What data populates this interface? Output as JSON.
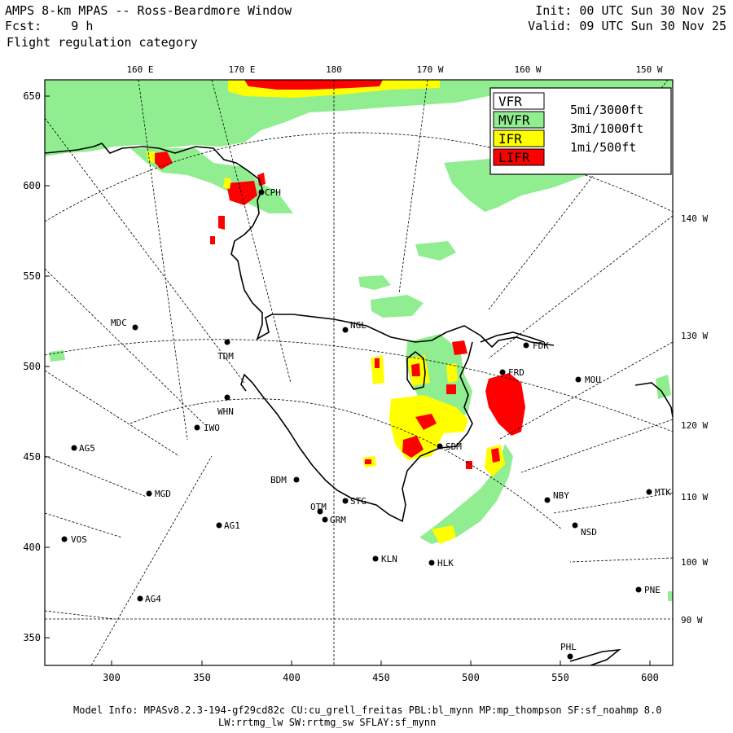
{
  "header": {
    "title": "AMPS 8-km MPAS -- Ross-Beardmore Window",
    "fcst": "Fcst:    9 h",
    "subtitle": "Flight regulation category",
    "init": "Init: 00 UTC Sun 30 Nov 25",
    "valid": "Valid: 09 UTC Sun 30 Nov 25"
  },
  "footer": {
    "line1": "Model Info: MPASv8.2.3-194-gf29cd82c CU:cu_grell_freitas PBL:bl_mynn MP:mp_thompson SF:sf_noahmp 8.0",
    "line2": "LW:rrtmg_lw SW:rrtmg_sw SFLAY:sf_mynn"
  },
  "colors": {
    "vfr": "#ffffff",
    "mvfr": "#90ee90",
    "ifr": "#ffff00",
    "lifr": "#ff0000",
    "frame": "#000000"
  },
  "legend": [
    {
      "code": "VFR",
      "threshold": "5mi/3000ft",
      "color": "#ffffff"
    },
    {
      "code": "MVFR",
      "threshold": "3mi/1000ft",
      "color": "#90ee90"
    },
    {
      "code": "IFR",
      "threshold": "1mi/500ft",
      "color": "#ffff00"
    },
    {
      "code": "LIFR",
      "threshold": "",
      "color": "#ff0000"
    }
  ],
  "axes": {
    "x_ticks": [
      "300",
      "350",
      "400",
      "450",
      "500",
      "550",
      "600"
    ],
    "y_ticks": [
      "650",
      "600",
      "550",
      "500",
      "450",
      "400",
      "350"
    ],
    "top_lon": [
      "160 E",
      "170 E",
      "180",
      "170 W",
      "160 W",
      "150 W"
    ],
    "right_lon": [
      "140 W",
      "130 W",
      "120 W",
      "110 W",
      "100 W",
      "90 W"
    ]
  },
  "stations": [
    "CPH",
    "MDC",
    "TDM",
    "NGL",
    "FDK",
    "FRD",
    "MOU",
    "WHN",
    "IWO",
    "AG5",
    "SDM",
    "BDM",
    "MGD",
    "STG",
    "OTM",
    "GRM",
    "NBY",
    "MTK",
    "AG1",
    "NSD",
    "VOS",
    "KLN",
    "HLK",
    "PNE",
    "AG4",
    "PHL"
  ]
}
